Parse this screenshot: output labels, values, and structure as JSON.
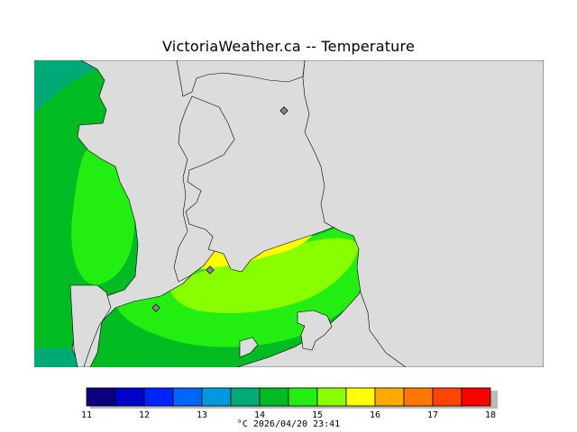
{
  "title": "VictoriaWeather.ca -- Temperature",
  "caption": "°C  2026/04/20 23:41",
  "legend": {
    "ticks": [
      "11",
      "12",
      "13",
      "14",
      "15",
      "16",
      "17",
      "18"
    ],
    "bins": [
      {
        "from": 11.0,
        "to": 11.5,
        "color": "#0a0080"
      },
      {
        "from": 11.5,
        "to": 12.0,
        "color": "#0000cc"
      },
      {
        "from": 12.0,
        "to": 12.5,
        "color": "#0022ff"
      },
      {
        "from": 12.5,
        "to": 13.0,
        "color": "#0066ff"
      },
      {
        "from": 13.0,
        "to": 13.5,
        "color": "#0099dd"
      },
      {
        "from": 13.5,
        "to": 14.0,
        "color": "#00aa77"
      },
      {
        "from": 14.0,
        "to": 14.5,
        "color": "#00bb22"
      },
      {
        "from": 14.5,
        "to": 15.0,
        "color": "#22ee11"
      },
      {
        "from": 15.0,
        "to": 15.5,
        "color": "#88ff00"
      },
      {
        "from": 15.5,
        "to": 16.0,
        "color": "#ffff00"
      },
      {
        "from": 16.0,
        "to": 16.5,
        "color": "#ffaa00"
      },
      {
        "from": 16.5,
        "to": 17.0,
        "color": "#ff7700"
      },
      {
        "from": 17.0,
        "to": 17.5,
        "color": "#ff4400"
      },
      {
        "from": 17.5,
        "to": 18.0,
        "color": "#ff0000"
      }
    ]
  },
  "colors": {
    "land": "#dcdcdc",
    "coast": "#000000",
    "station_marker": "#888888"
  }
}
